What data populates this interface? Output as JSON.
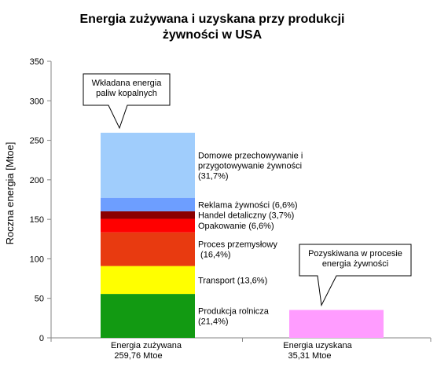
{
  "chart_data": {
    "type": "bar",
    "stacked": true,
    "title_line1": "Energia zużywana i uzyskana przy produkcji",
    "title_line2": "żywności w USA",
    "ylabel": "Roczna energia [Mtoe]",
    "xlabel": "",
    "ylim": [
      0,
      350
    ],
    "yticks": [
      "0",
      "50",
      "100",
      "150",
      "200",
      "250",
      "300",
      "350"
    ],
    "grid": false,
    "categories": [
      {
        "line1": "Energia zużywana",
        "line2": "259,76 Mtoe"
      },
      {
        "line1": "Energia uzyskana",
        "line2": "35,31 Mtoe"
      }
    ],
    "series": [
      {
        "category": 0,
        "value": 55.6,
        "color": "#129a12",
        "label": [
          "Produkcja rolnicza",
          "(21,4%)"
        ]
      },
      {
        "category": 0,
        "value": 35.3,
        "color": "#ffff00",
        "label": [
          "Transport  (13,6%)"
        ]
      },
      {
        "category": 0,
        "value": 42.6,
        "color": "#e83a10",
        "label": [
          "Proces przemysłowy",
          " (16,4%)"
        ]
      },
      {
        "category": 0,
        "value": 17.1,
        "color": "#ff0000",
        "label": [
          "Opakowanie (6,6%)"
        ]
      },
      {
        "category": 0,
        "value": 9.6,
        "color": "#8b0000",
        "label": [
          "Handel detaliczny (3,7%)"
        ]
      },
      {
        "category": 0,
        "value": 17.1,
        "color": "#6d9eff",
        "label": [
          "Reklama żywności (6,6%)"
        ]
      },
      {
        "category": 0,
        "value": 82.3,
        "color": "#a0cdfc",
        "label": [
          "Domowe przechowywanie  i",
          "przygotowywanie żywności",
          "(31,7%)"
        ]
      },
      {
        "category": 1,
        "value": 35.31,
        "color": "#ff9cff",
        "label": []
      }
    ],
    "callouts": [
      {
        "lines": [
          "Wkładana energia",
          "paliw kopalnych"
        ]
      },
      {
        "lines": [
          "Pozyskiwana w procesie",
          "energia żywności"
        ]
      }
    ]
  }
}
